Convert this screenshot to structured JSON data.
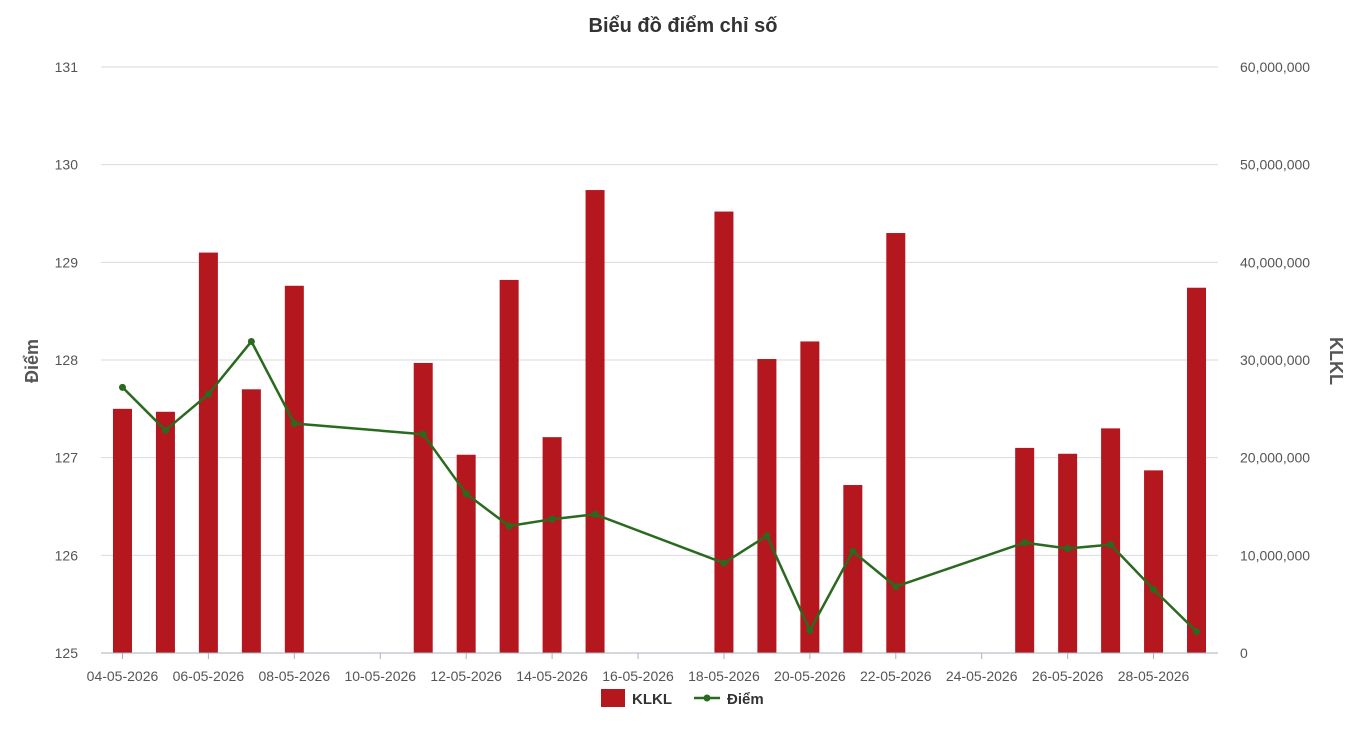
{
  "chart_data": {
    "type": "bar+line",
    "title": "Biểu đồ điểm chỉ số",
    "left_axis": {
      "label": "Điểm",
      "ylim": [
        125,
        131
      ],
      "ticks": [
        "125",
        "126",
        "127",
        "128",
        "129",
        "130",
        "131"
      ]
    },
    "right_axis": {
      "label": "KLKL",
      "ylim": [
        0,
        60000000
      ],
      "ticks": [
        "0",
        "10,000,000",
        "20,000,000",
        "30,000,000",
        "40,000,000",
        "50,000,000",
        "60,000,000"
      ]
    },
    "x_tick_labels": [
      "04-05-2026",
      "06-05-2026",
      "08-05-2026",
      "10-05-2026",
      "12-05-2026",
      "14-05-2026",
      "16-05-2026",
      "18-05-2026",
      "20-05-2026",
      "22-05-2026",
      "24-05-2026",
      "26-05-2026",
      "28-05-2026"
    ],
    "x_range": [
      "2026-05-04",
      "2026-05-30"
    ],
    "grid": true,
    "legend_position": "bottom-center",
    "series": [
      {
        "name": "KLKL",
        "type": "bar",
        "axis": "right",
        "color": "#b5171f",
        "points": [
          {
            "date": "2026-05-04",
            "value": 25000000
          },
          {
            "date": "2026-05-05",
            "value": 24700000
          },
          {
            "date": "2026-05-06",
            "value": 41000000
          },
          {
            "date": "2026-05-07",
            "value": 27000000
          },
          {
            "date": "2026-05-08",
            "value": 37600000
          },
          {
            "date": "2026-05-11",
            "value": 29700000
          },
          {
            "date": "2026-05-12",
            "value": 20300000
          },
          {
            "date": "2026-05-13",
            "value": 38200000
          },
          {
            "date": "2026-05-14",
            "value": 22100000
          },
          {
            "date": "2026-05-15",
            "value": 47400000
          },
          {
            "date": "2026-05-18",
            "value": 45200000
          },
          {
            "date": "2026-05-19",
            "value": 30100000
          },
          {
            "date": "2026-05-20",
            "value": 31900000
          },
          {
            "date": "2026-05-21",
            "value": 17200000
          },
          {
            "date": "2026-05-22",
            "value": 43000000
          },
          {
            "date": "2026-05-25",
            "value": 21000000
          },
          {
            "date": "2026-05-26",
            "value": 20400000
          },
          {
            "date": "2026-05-27",
            "value": 23000000
          },
          {
            "date": "2026-05-28",
            "value": 18700000
          },
          {
            "date": "2026-05-29",
            "value": 37400000
          }
        ]
      },
      {
        "name": "Điểm",
        "type": "line",
        "axis": "left",
        "color": "#2a6a1f",
        "points": [
          {
            "date": "2026-05-04",
            "value": 127.72
          },
          {
            "date": "2026-05-05",
            "value": 127.28
          },
          {
            "date": "2026-05-06",
            "value": 127.65
          },
          {
            "date": "2026-05-07",
            "value": 128.19
          },
          {
            "date": "2026-05-08",
            "value": 127.35
          },
          {
            "date": "2026-05-11",
            "value": 127.24
          },
          {
            "date": "2026-05-12",
            "value": 126.63
          },
          {
            "date": "2026-05-13",
            "value": 126.3
          },
          {
            "date": "2026-05-14",
            "value": 126.37
          },
          {
            "date": "2026-05-15",
            "value": 126.42
          },
          {
            "date": "2026-05-18",
            "value": 125.92
          },
          {
            "date": "2026-05-19",
            "value": 126.2
          },
          {
            "date": "2026-05-20",
            "value": 125.23
          },
          {
            "date": "2026-05-21",
            "value": 126.04
          },
          {
            "date": "2026-05-22",
            "value": 125.68
          },
          {
            "date": "2026-05-25",
            "value": 126.13
          },
          {
            "date": "2026-05-26",
            "value": 126.07
          },
          {
            "date": "2026-05-27",
            "value": 126.11
          },
          {
            "date": "2026-05-28",
            "value": 125.65
          },
          {
            "date": "2026-05-29",
            "value": 125.22
          }
        ]
      }
    ]
  }
}
